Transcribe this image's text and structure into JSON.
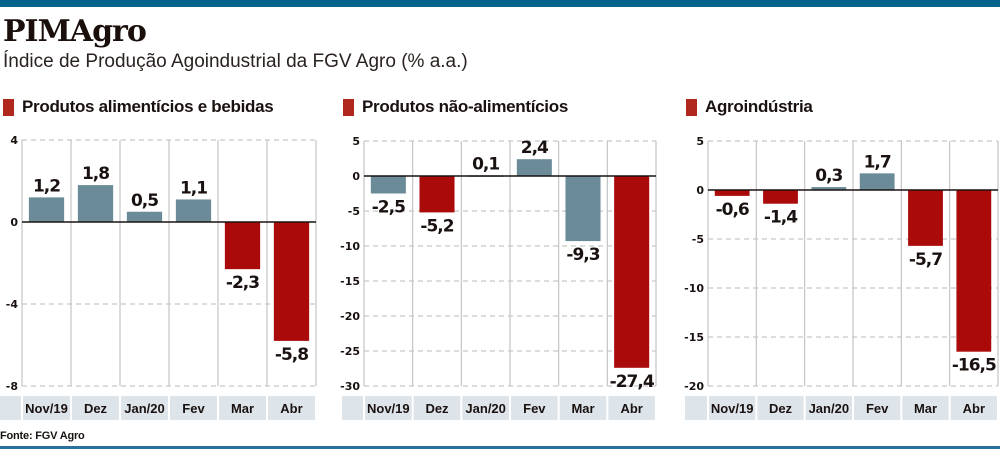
{
  "header": {
    "title": "PIMAgro",
    "subtitle": "Índice de Produção Agoindustrial da FGV Agro (% a.a.)"
  },
  "footer": {
    "source": "Fonte: FGV Agro"
  },
  "colors": {
    "top_bar": "#05628a",
    "positive_bar": "#6b8b99",
    "negative_bar": "#aa0a0a",
    "legend_swatch": "#b0271d",
    "category_band": "#dde4ea"
  },
  "chart_data": [
    {
      "type": "bar",
      "title": "Produtos alimentícios e bebidas",
      "xlabel": "",
      "ylabel": "",
      "categories": [
        "Nov/19",
        "Dez",
        "Jan/20",
        "Fev",
        "Mar",
        "Abr"
      ],
      "values": [
        1.2,
        1.8,
        0.5,
        1.1,
        -2.3,
        -5.8
      ],
      "value_labels": [
        "1,2",
        "1,8",
        "0,5",
        "1,1",
        "-2,3",
        "-5,8"
      ],
      "bar_colors": [
        "gray",
        "gray",
        "gray",
        "gray",
        "red",
        "red"
      ],
      "ylim": [
        -8,
        4
      ],
      "yticks": [
        4,
        0,
        -4,
        -8
      ],
      "ytick_labels": [
        "4",
        "0",
        "-4",
        "-8"
      ],
      "grid": true
    },
    {
      "type": "bar",
      "title": "Produtos não-alimentícios",
      "xlabel": "",
      "ylabel": "",
      "categories": [
        "Nov/19",
        "Dez",
        "Jan/20",
        "Fev",
        "Mar",
        "Abr"
      ],
      "values": [
        -2.5,
        -5.2,
        0.1,
        2.4,
        -9.3,
        -27.4
      ],
      "value_labels": [
        "-2,5",
        "-5,2",
        "0,1",
        "2,4",
        "-9,3",
        "-27,4"
      ],
      "bar_colors": [
        "gray",
        "red",
        "gray",
        "gray",
        "gray",
        "red"
      ],
      "ylim": [
        -30,
        5
      ],
      "yticks": [
        5,
        0,
        -5,
        -10,
        -15,
        -20,
        -25,
        -30
      ],
      "ytick_labels": [
        "5",
        "0",
        "-5",
        "-10",
        "-15",
        "-20",
        "-25",
        "-30"
      ],
      "grid": true
    },
    {
      "type": "bar",
      "title": "Agroindústria",
      "xlabel": "",
      "ylabel": "",
      "categories": [
        "Nov/19",
        "Dez",
        "Jan/20",
        "Fev",
        "Mar",
        "Abr"
      ],
      "values": [
        -0.6,
        -1.4,
        0.3,
        1.7,
        -5.7,
        -16.5
      ],
      "value_labels": [
        "-0,6",
        "-1,4",
        "0,3",
        "1,7",
        "-5,7",
        "-16,5"
      ],
      "bar_colors": [
        "red",
        "red",
        "gray",
        "gray",
        "red",
        "red"
      ],
      "ylim": [
        -20,
        5
      ],
      "yticks": [
        5,
        0,
        -5,
        -10,
        -15,
        -20
      ],
      "ytick_labels": [
        "5",
        "0",
        "-5",
        "-10",
        "-15",
        "-20"
      ],
      "grid": true
    }
  ]
}
